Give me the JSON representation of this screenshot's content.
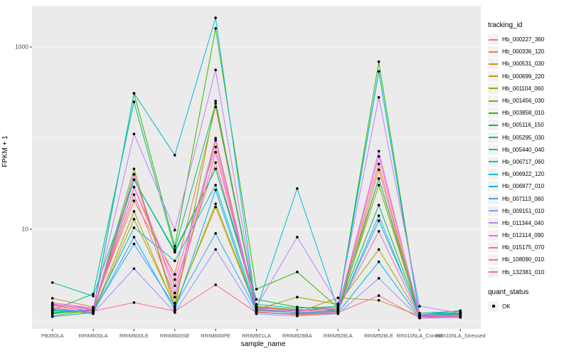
{
  "chart_data": {
    "type": "line",
    "title": "",
    "xlabel": "sample_name",
    "ylabel": "FPKM + 1",
    "y_scale": "log10",
    "y_ticks": [
      10,
      1000
    ],
    "y_minor_gridlines": [
      1,
      100
    ],
    "ylim": [
      0.95,
      2800
    ],
    "grid": true,
    "panel_bg": "#EBEBEB",
    "grid_color": "#FFFFFF",
    "point_color": "#000000",
    "point_shape": "filled-circle",
    "legend": {
      "position": "right",
      "series_title": "tracking_id",
      "status_title": "quant_status",
      "status_label": "OK"
    },
    "categories": [
      "PB350LA",
      "RRIM600LA",
      "RRIM600LE",
      "RRIM600SE",
      "RRIM600PE",
      "RRIM901LA",
      "RRIM928BA",
      "RRIM928LA",
      "RRIM928LE",
      "RRII105LA_Control",
      "RRII105LA_Stressed"
    ],
    "series": [
      {
        "name": "Hb_000227_360",
        "color": "#F8766D",
        "values": [
          1.45,
          1.25,
          29,
          2.4,
          54,
          1.35,
          1.2,
          1.25,
          45,
          1.1,
          1.1
        ]
      },
      {
        "name": "Hb_000336_120",
        "color": "#EA8331",
        "values": [
          1.75,
          1.4,
          20.5,
          3.2,
          220,
          1.4,
          1.3,
          1.35,
          52,
          1.1,
          1.12
        ]
      },
      {
        "name": "Hb_000531_030",
        "color": "#D89000",
        "values": [
          1.38,
          1.22,
          40,
          1.55,
          95,
          1.25,
          1.15,
          1.2,
          36,
          1.06,
          1.08
        ]
      },
      {
        "name": "Hb_000699_220",
        "color": "#C09B00",
        "values": [
          1.32,
          1.18,
          12.9,
          1.45,
          17.5,
          1.3,
          1.22,
          1.77,
          1.66,
          1.12,
          1.15
        ]
      },
      {
        "name": "Hb_001104_060",
        "color": "#A3A500",
        "values": [
          1.28,
          1.2,
          15.7,
          1.4,
          19,
          1.32,
          1.8,
          1.5,
          6.0,
          1.1,
          1.2
        ]
      },
      {
        "name": "Hb_001456_030",
        "color": "#7CAE00",
        "values": [
          1.12,
          1.3,
          46,
          1.35,
          255,
          1.42,
          1.32,
          1.28,
          30.5,
          1.12,
          1.18
        ]
      },
      {
        "name": "Hb_003858_010",
        "color": "#39B600",
        "values": [
          1.2,
          1.28,
          310,
          6.5,
          1600,
          2.2,
          3.4,
          1.38,
          690,
          1.12,
          1.22
        ]
      },
      {
        "name": "Hb_005116_150",
        "color": "#00BB4E",
        "values": [
          1.18,
          1.32,
          35,
          5.6,
          46,
          1.7,
          1.4,
          1.32,
          18.4,
          1.15,
          1.28
        ]
      },
      {
        "name": "Hb_005295_030",
        "color": "#00BF7D",
        "values": [
          1.3,
          1.95,
          250,
          6.0,
          240,
          1.38,
          1.28,
          1.42,
          540,
          1.12,
          1.22
        ]
      },
      {
        "name": "Hb_005440_040",
        "color": "#00C1A3",
        "values": [
          2.6,
          1.85,
          35,
          5.8,
          46,
          1.5,
          1.36,
          1.42,
          36,
          1.2,
          1.26
        ]
      },
      {
        "name": "Hb_006717_060",
        "color": "#00BFC4",
        "values": [
          1.26,
          1.3,
          10.4,
          4.5,
          30.5,
          1.32,
          1.22,
          1.28,
          12.4,
          1.16,
          1.22
        ]
      },
      {
        "name": "Hb_006922_120",
        "color": "#00BAE0",
        "values": [
          1.22,
          1.32,
          310,
          65,
          2090,
          1.32,
          28,
          1.32,
          540,
          1.12,
          1.2
        ]
      },
      {
        "name": "Hb_006977_010",
        "color": "#00B0F6",
        "values": [
          1.1,
          1.22,
          8.2,
          1.3,
          27,
          1.22,
          1.18,
          1.22,
          4.4,
          1.06,
          1.12
        ]
      },
      {
        "name": "Hb_007113_060",
        "color": "#35A2FF",
        "values": [
          1.3,
          1.26,
          6.9,
          1.42,
          9.0,
          1.28,
          1.22,
          1.26,
          14.1,
          1.1,
          1.16
        ]
      },
      {
        "name": "Hb_009151_010",
        "color": "#9590FF",
        "values": [
          1.36,
          1.2,
          3.7,
          1.22,
          6.0,
          1.18,
          1.12,
          1.18,
          2.9,
          1.06,
          1.08
        ]
      },
      {
        "name": "Hb_011344_040",
        "color": "#C77CFF",
        "values": [
          1.48,
          1.36,
          111,
          9.8,
          560,
          1.42,
          8.2,
          1.52,
          280,
          1.43,
          1.2
        ]
      },
      {
        "name": "Hb_012114_090",
        "color": "#E76BF3",
        "values": [
          1.52,
          1.3,
          40,
          2.0,
          100,
          1.32,
          1.26,
          1.32,
          72,
          1.1,
          1.12
        ]
      },
      {
        "name": "Hb_015175_070",
        "color": "#FA62DB",
        "values": [
          1.56,
          1.36,
          29,
          2.8,
          80,
          1.36,
          1.3,
          1.36,
          63,
          1.16,
          1.12
        ]
      },
      {
        "name": "Hb_108090_010",
        "color": "#FF62BC",
        "values": [
          1.5,
          1.32,
          24,
          1.8,
          70,
          1.32,
          1.26,
          1.32,
          9.5,
          1.1,
          1.08
        ]
      },
      {
        "name": "Hb_132381_010",
        "color": "#FF6A98",
        "values": [
          1.46,
          1.26,
          1.57,
          1.26,
          2.46,
          1.22,
          1.16,
          1.22,
          1.87,
          1.06,
          1.1
        ]
      }
    ]
  }
}
